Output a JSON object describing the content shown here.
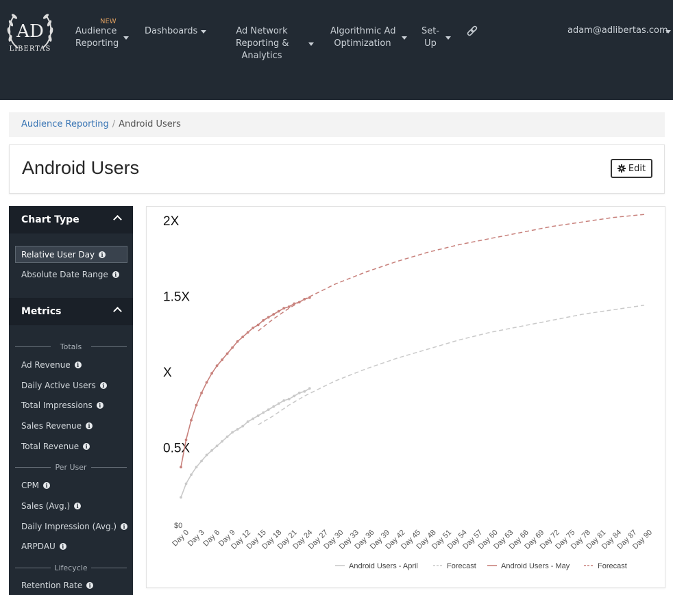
{
  "nav": {
    "logo_text": "AD LIBERTAS",
    "new_badge": "NEW",
    "items": [
      {
        "label_lines": [
          "Audience",
          "Reporting"
        ]
      },
      {
        "label_lines": [
          "Dashboards"
        ]
      },
      {
        "label_lines": [
          "Ad Network",
          "Reporting &",
          "Analytics"
        ]
      },
      {
        "label_lines": [
          "Algorithmic Ad",
          "Optimization"
        ]
      },
      {
        "label_lines": [
          "Set-",
          "Up"
        ]
      }
    ],
    "user": "adam@adlibertas.com"
  },
  "breadcrumb": {
    "parent": "Audience Reporting",
    "separator": "/",
    "current": "Android Users"
  },
  "page": {
    "title": "Android Users",
    "edit_label": "Edit"
  },
  "sidebar": {
    "chart_type": {
      "heading": "Chart Type",
      "options": [
        "Relative User Day",
        "Absolute Date Range"
      ],
      "selected": "Relative User Day"
    },
    "metrics": {
      "heading": "Metrics",
      "groups": [
        {
          "name": "Totals",
          "items": [
            "Ad Revenue",
            "Daily Active Users",
            "Total Impressions",
            "Sales Revenue",
            "Total Revenue"
          ]
        },
        {
          "name": "Per User",
          "items": [
            "CPM",
            "Sales (Avg.)",
            "Daily Impression (Avg.)",
            "ARPDAU"
          ]
        },
        {
          "name": "Lifecycle",
          "items": [
            "Retention Rate"
          ]
        }
      ]
    }
  },
  "colors": {
    "may": "#c8817c",
    "april": "#c9c9c9",
    "nav_bg": "#222a33"
  },
  "chart_data": {
    "type": "line",
    "title": "",
    "xlabel": "",
    "ylabel": "",
    "y_tick_labels": [
      "$0",
      "0.5X",
      "X",
      "1.5X",
      "2X"
    ],
    "y_tick_values": [
      0,
      0.5,
      1.0,
      1.5,
      2.0
    ],
    "ylim": [
      0,
      2.0
    ],
    "x_tick_labels": [
      "Day 0",
      "Day 3",
      "Day 6",
      "Day 9",
      "Day 12",
      "Day 15",
      "Day 18",
      "Day 21",
      "Day 24",
      "Day 27",
      "Day 30",
      "Day 33",
      "Day 36",
      "Day 39",
      "Day 42",
      "Day 45",
      "Day 48",
      "Day 51",
      "Day 54",
      "Day 57",
      "Day 60",
      "Day 63",
      "Day 66",
      "Day 69",
      "Day 72",
      "Day 75",
      "Day 78",
      "Day 81",
      "Day 84",
      "Day 87",
      "Day 90"
    ],
    "x_tick_values": [
      0,
      3,
      6,
      9,
      12,
      15,
      18,
      21,
      24,
      27,
      30,
      33,
      36,
      39,
      42,
      45,
      48,
      51,
      54,
      57,
      60,
      63,
      66,
      69,
      72,
      75,
      78,
      81,
      84,
      87,
      90
    ],
    "xlim": [
      0,
      90
    ],
    "grid": false,
    "legend_position": "bottom",
    "series": [
      {
        "name": "Android Users - April",
        "style": "solid",
        "color": "#c9c9c9",
        "markers": true,
        "x": [
          0,
          1,
          2,
          3,
          4,
          5,
          6,
          7,
          8,
          9,
          10,
          11,
          12,
          13,
          14,
          15,
          16,
          17,
          18,
          19,
          20,
          21,
          22,
          23,
          24,
          25
        ],
        "y": [
          0.17,
          0.26,
          0.32,
          0.37,
          0.41,
          0.45,
          0.48,
          0.51,
          0.54,
          0.57,
          0.6,
          0.62,
          0.64,
          0.67,
          0.69,
          0.71,
          0.73,
          0.75,
          0.77,
          0.79,
          0.81,
          0.82,
          0.84,
          0.86,
          0.87,
          0.89
        ]
      },
      {
        "name": "Forecast",
        "style": "dashed",
        "color": "#c9c9c9",
        "markers": false,
        "x": [
          15,
          18,
          21,
          24,
          27,
          30,
          36,
          42,
          48,
          54,
          60,
          66,
          72,
          78,
          84,
          90
        ],
        "y": [
          0.65,
          0.71,
          0.78,
          0.84,
          0.89,
          0.94,
          1.02,
          1.09,
          1.15,
          1.21,
          1.26,
          1.3,
          1.34,
          1.38,
          1.41,
          1.44
        ]
      },
      {
        "name": "Android Users - May",
        "style": "solid",
        "color": "#c8817c",
        "markers": true,
        "x": [
          0,
          1,
          2,
          3,
          4,
          5,
          6,
          7,
          8,
          9,
          10,
          11,
          12,
          13,
          14,
          15,
          16,
          17,
          18,
          19,
          20,
          21,
          22,
          23,
          24,
          25
        ],
        "y": [
          0.37,
          0.55,
          0.68,
          0.78,
          0.86,
          0.93,
          0.99,
          1.04,
          1.08,
          1.12,
          1.16,
          1.2,
          1.23,
          1.26,
          1.29,
          1.31,
          1.34,
          1.36,
          1.38,
          1.4,
          1.42,
          1.43,
          1.45,
          1.46,
          1.48,
          1.49
        ]
      },
      {
        "name": "Forecast",
        "style": "dashed",
        "color": "#c8817c",
        "markers": false,
        "x": [
          15,
          18,
          21,
          24,
          27,
          30,
          36,
          42,
          48,
          54,
          60,
          66,
          72,
          78,
          84,
          90
        ],
        "y": [
          1.27,
          1.35,
          1.42,
          1.48,
          1.53,
          1.58,
          1.66,
          1.73,
          1.79,
          1.84,
          1.88,
          1.92,
          1.96,
          1.99,
          2.02,
          2.04
        ]
      }
    ]
  }
}
